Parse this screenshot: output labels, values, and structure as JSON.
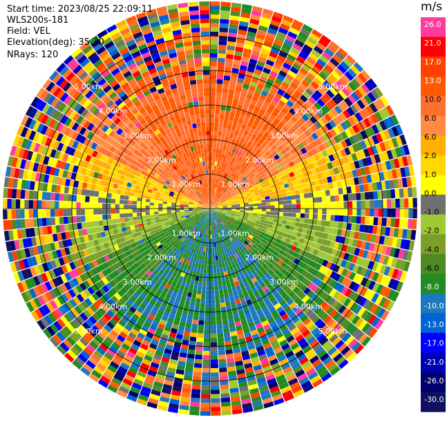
{
  "header": {
    "start_time": "Start time: 2023/08/25 22:09:11",
    "site": "WLS200s-181",
    "field": "Field: VEL",
    "elevation": "Elevation(deg): 35.30",
    "nrays": "NRays: 120"
  },
  "chart_data": {
    "type": "ppi",
    "field": "VEL",
    "unit": "m/s",
    "n_rays": 120,
    "max_range_km": 6.0,
    "range_rings_km": [
      1,
      2,
      3,
      4,
      5
    ],
    "ring_labels": [
      "1.00km",
      "2.00km",
      "3.00km",
      "4.00km",
      "5.00km"
    ],
    "colorbar": {
      "ticks": [
        "26.0",
        "21.0",
        "17.0",
        "13.0",
        "10.0",
        "8.0",
        "6.0",
        "2.0",
        "1.0",
        "0.0",
        "-1.0",
        "-2.0",
        "-4.0",
        "-6.0",
        "-8.0",
        "-10.0",
        "-13.0",
        "-17.0",
        "-21.0",
        "-26.0",
        "-30.0"
      ],
      "colors": [
        "#ff3c9c",
        "#ff0000",
        "#ff4000",
        "#ff5a00",
        "#ff7030",
        "#ff8c40",
        "#ffb000",
        "#ffd800",
        "#ffff00",
        "#707070",
        "#a0c832",
        "#7aa029",
        "#4c8c23",
        "#228b22",
        "#1e78be",
        "#0064d2",
        "#0000ff",
        "#0000b4",
        "#00006e",
        "#101060"
      ]
    },
    "velocity_pattern": "positive (receding) velocities in the northern half, negative (approaching) in the southern half; outer ranges noisy",
    "colors": {
      "background": "#ffffff",
      "rings": "#000000",
      "ray_gap": "#ffffff"
    }
  }
}
